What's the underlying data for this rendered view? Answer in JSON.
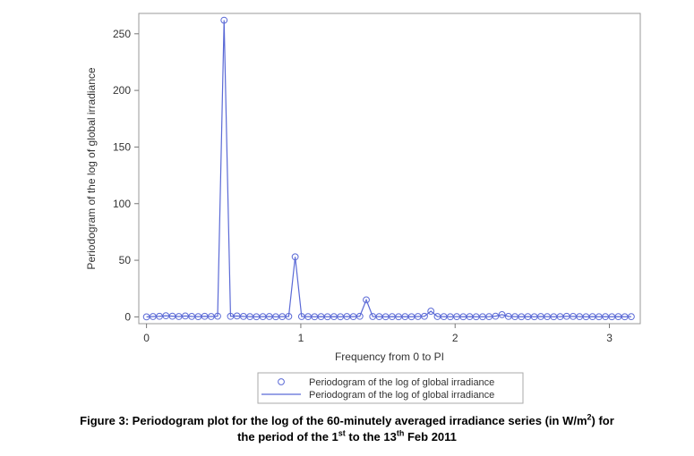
{
  "chart_data": {
    "type": "line",
    "xlabel": "Frequency from 0 to PI",
    "ylabel": "Periodogram of the log of global irradiance",
    "xlim": [
      -0.05,
      3.2
    ],
    "ylim": [
      -6,
      268
    ],
    "xticks": [
      0,
      1,
      2,
      3
    ],
    "yticks": [
      0,
      50,
      100,
      150,
      200,
      250
    ],
    "grid": false,
    "legend_position": "bottom-center",
    "series_color": "#5b6ad6",
    "legend": [
      {
        "marker": "circle",
        "label": "Periodogram of the log of global irradiance"
      },
      {
        "marker": "line",
        "label": "Periodogram of the log of global irradiance"
      }
    ],
    "series": [
      {
        "name": "Periodogram of the log of global irradiance",
        "x": [
          0,
          0.0419,
          0.0838,
          0.1257,
          0.1676,
          0.2094,
          0.2513,
          0.2932,
          0.3351,
          0.377,
          0.4189,
          0.4608,
          0.5027,
          0.5445,
          0.5864,
          0.6283,
          0.6702,
          0.7121,
          0.754,
          0.7959,
          0.8378,
          0.8796,
          0.9215,
          0.9634,
          1.0053,
          1.0472,
          1.0891,
          1.131,
          1.1729,
          1.2147,
          1.2566,
          1.2985,
          1.3404,
          1.3823,
          1.4242,
          1.4661,
          1.508,
          1.5499,
          1.5917,
          1.6336,
          1.6755,
          1.7174,
          1.7593,
          1.8012,
          1.8431,
          1.885,
          1.9268,
          1.9687,
          2.0106,
          2.0525,
          2.0944,
          2.1363,
          2.1782,
          2.2201,
          2.2619,
          2.3038,
          2.3457,
          2.3876,
          2.4295,
          2.4714,
          2.5133,
          2.5552,
          2.597,
          2.6389,
          2.6808,
          2.7227,
          2.7646,
          2.8065,
          2.8484,
          2.8903,
          2.9322,
          2.974,
          3.0159,
          3.0578,
          3.0997,
          3.1416
        ],
        "values": [
          0,
          0.3,
          0.5,
          1,
          0.6,
          0.3,
          0.8,
          0.4,
          0.2,
          0.5,
          0.3,
          0.6,
          262,
          0.5,
          0.8,
          0.4,
          0.2,
          0.1,
          0.2,
          0.3,
          0.1,
          0.2,
          0.4,
          53,
          0.3,
          0.2,
          0.1,
          0.2,
          0.1,
          0.2,
          0.1,
          0.3,
          0.2,
          0.5,
          15,
          0.3,
          0.2,
          0.1,
          0.2,
          0.1,
          0.2,
          0.1,
          0.3,
          0.5,
          5,
          0.3,
          0.2,
          0.1,
          0.2,
          0.1,
          0.2,
          0.1,
          0.1,
          0.2,
          0.6,
          2,
          0.4,
          0.2,
          0.1,
          0.2,
          0.1,
          0.3,
          0.2,
          0.1,
          0.2,
          0.5,
          0.4,
          0.2,
          0.1,
          0.2,
          0.1,
          0.2,
          0.1,
          0.2,
          0.1,
          0.2
        ]
      }
    ]
  },
  "caption": {
    "line1_pre": "Figure 3: Periodogram plot for the log of the 60-minutely averaged irradiance series (in W/m",
    "line1_sup": "2",
    "line1_post": ") for",
    "line2_a": "the period of the 1",
    "line2_sup1": "st",
    "line2_b": " to the 13",
    "line2_sup2": "th",
    "line2_c": " Feb 2011"
  }
}
